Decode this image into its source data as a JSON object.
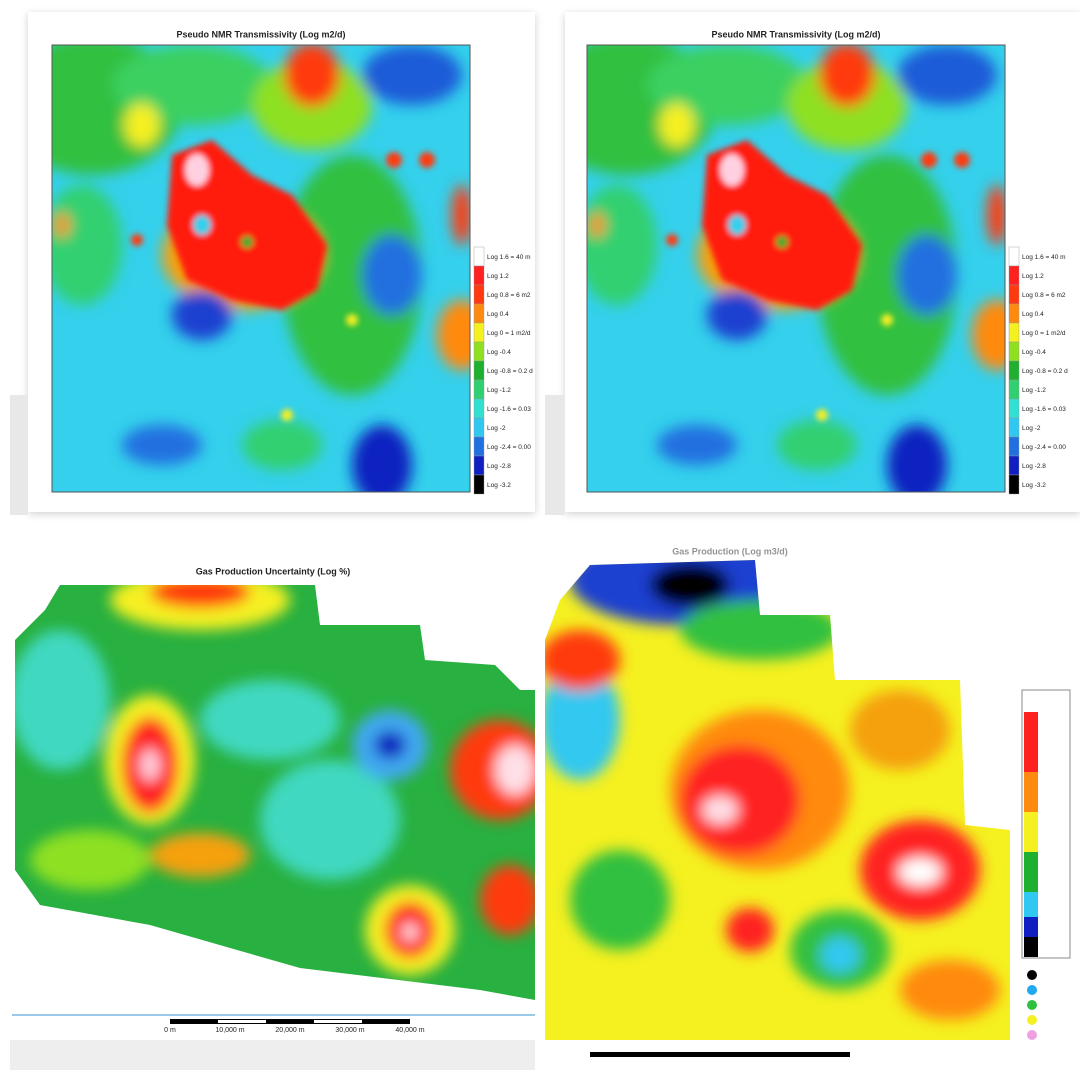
{
  "panels": [
    {
      "title": "Pseudo NMR Transmissivity (Log m2/d)",
      "legend": [
        {
          "label": "Log 1.6 = 40 m",
          "color": "#ffffff"
        },
        {
          "label": "Log 1.2",
          "color": "#ff2020"
        },
        {
          "label": "Log 0.8 = 6 m2",
          "color": "#ff3a10"
        },
        {
          "label": "Log 0.4",
          "color": "#ff8a10"
        },
        {
          "label": "Log 0 = 1 m2/d",
          "color": "#f5f020"
        },
        {
          "label": "Log -0.4",
          "color": "#8ee020"
        },
        {
          "label": "Log -0.8 = 0.2 d",
          "color": "#20b030"
        },
        {
          "label": "Log -1.2",
          "color": "#30d070"
        },
        {
          "label": "Log -1.6 = 0.03",
          "color": "#30e0d0"
        },
        {
          "label": "Log -2",
          "color": "#30c8f0"
        },
        {
          "label": "Log -2.4 = 0.00",
          "color": "#2070e0"
        },
        {
          "label": "Log -2.8",
          "color": "#1020c0"
        },
        {
          "label": "Log -3.2",
          "color": "#000000"
        }
      ]
    },
    {
      "title": "Pseudo NMR Transmissivity (Log m2/d)",
      "legend": [
        {
          "label": "Log 1.6 = 40 m",
          "color": "#ffffff"
        },
        {
          "label": "Log 1.2",
          "color": "#ff2020"
        },
        {
          "label": "Log 0.8 = 6 m2",
          "color": "#ff3a10"
        },
        {
          "label": "Log 0.4",
          "color": "#ff8a10"
        },
        {
          "label": "Log 0 = 1 m2/d",
          "color": "#f5f020"
        },
        {
          "label": "Log -0.4",
          "color": "#8ee020"
        },
        {
          "label": "Log -0.8 = 0.2 d",
          "color": "#20b030"
        },
        {
          "label": "Log -1.2",
          "color": "#30d070"
        },
        {
          "label": "Log -1.6 = 0.03",
          "color": "#30e0d0"
        },
        {
          "label": "Log -2",
          "color": "#30c8f0"
        },
        {
          "label": "Log -2.4 = 0.00",
          "color": "#2070e0"
        },
        {
          "label": "Log -2.8",
          "color": "#1020c0"
        },
        {
          "label": "Log -3.2",
          "color": "#000000"
        }
      ]
    },
    {
      "title": "Gas Production Uncertainty (Log %)",
      "scale": [
        "0 m",
        "10,000 m",
        "20,000 m",
        "30,000 m",
        "40,000 m"
      ]
    },
    {
      "title": "Gas Production (Log m3/d)"
    }
  ]
}
